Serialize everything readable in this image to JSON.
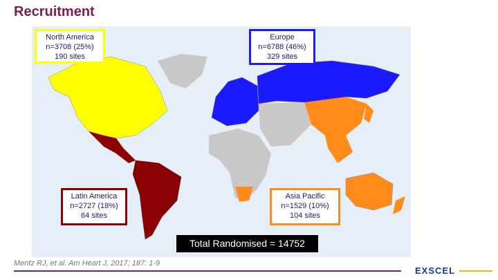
{
  "title": "Recruitment",
  "regions": [
    {
      "name": "North America",
      "n": "n=3708 (25%)",
      "sites": "190 sites"
    },
    {
      "name": "Europe",
      "n": "n=6788 (46%)",
      "sites": "329 sites"
    },
    {
      "name": "Latin America",
      "n": "n=2727 (18%)",
      "sites": "64 sites"
    },
    {
      "name": "Asia Pacific",
      "n": "n=1529 (10%)",
      "sites": "104 sites"
    }
  ],
  "total": "Total Randomised = 14752",
  "citation": "Mentz RJ, et al. Am Heart J, 2017; 187: 1-9",
  "logo": "EXSCEL"
}
